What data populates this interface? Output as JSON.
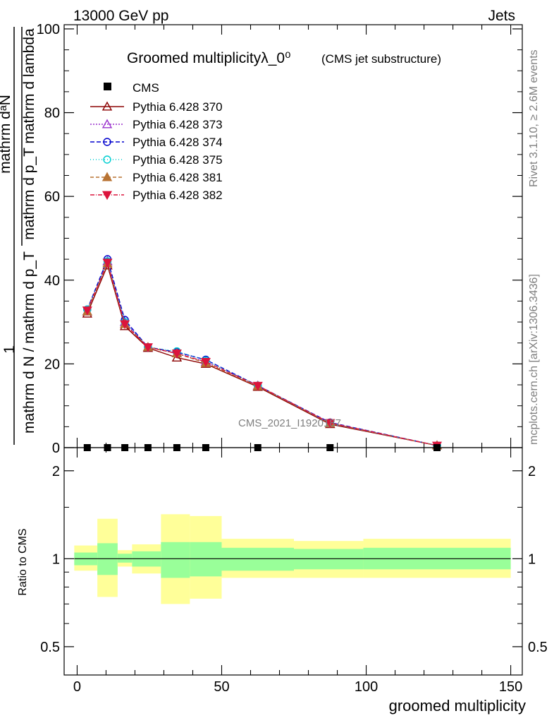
{
  "header": {
    "left": "13000 GeV pp",
    "right": "Jets"
  },
  "chart_data": {
    "type": "line",
    "title": "Groomed multiplicityλ_0⁰",
    "subtitle": "(CMS jet substructure)",
    "ylabel_numerator": "mathrm dᵃN",
    "ylabel_numerator_extra": "mathrm d p_T mathrm d lambda",
    "ylabel_prefix": "1",
    "ylabel_denominator": "mathrm d N / mathrm d p_T",
    "xlabel": "groomed multiplicity",
    "ratio_ylabel": "Ratio to CMS",
    "watermark": "CMS_2021_I1920187",
    "side_text_top": "Rivet 3.1.10, ≥ 2.6M events",
    "side_text_bottom": "mcplots.cern.ch [arXiv:1306.3436]",
    "xlim": [
      -4.5,
      154
    ],
    "ylim": [
      0,
      101
    ],
    "ratio_ylim": [
      0.4,
      2.4
    ],
    "xticks": [
      0,
      50,
      100,
      150
    ],
    "yticks": [
      0,
      20,
      40,
      60,
      80,
      100
    ],
    "ratio_yticks": [
      0.5,
      1,
      2
    ],
    "x": [
      3.5,
      10.5,
      16.5,
      24.5,
      34.5,
      44.5,
      62.5,
      87.5,
      124.5
    ],
    "cms_values": [
      0,
      0,
      0,
      0,
      0,
      0,
      0,
      0,
      0
    ],
    "series": [
      {
        "name": "Pythia 6.428 370",
        "color": "#8b0000",
        "marker": "triangle-open",
        "dash": "",
        "values": [
          32.0,
          43.5,
          29.0,
          23.8,
          21.5,
          20.0,
          14.5,
          5.6,
          0.5
        ]
      },
      {
        "name": "Pythia 6.428 373",
        "color": "#9a32cd",
        "marker": "triangle-open",
        "dash": "2,2",
        "values": [
          32.5,
          44.5,
          30.0,
          24.0,
          22.5,
          20.5,
          14.8,
          5.8,
          0.5
        ]
      },
      {
        "name": "Pythia 6.428 374",
        "color": "#0000cd",
        "marker": "circle-open",
        "dash": "6,3",
        "values": [
          33.0,
          45.0,
          30.5,
          24.0,
          22.8,
          21.0,
          14.8,
          6.0,
          0.5
        ]
      },
      {
        "name": "Pythia 6.428 375",
        "color": "#00ced1",
        "marker": "circle-open",
        "dash": "1,3",
        "values": [
          33.0,
          44.5,
          30.0,
          24.0,
          23.0,
          20.8,
          14.8,
          5.8,
          0.5
        ]
      },
      {
        "name": "Pythia 6.428 381",
        "color": "#b87333",
        "marker": "triangle-filled",
        "dash": "5,3",
        "values": [
          32.5,
          44.0,
          29.5,
          24.0,
          22.5,
          20.2,
          14.7,
          5.8,
          0.5
        ]
      },
      {
        "name": "Pythia 6.428 382",
        "color": "#dc143c",
        "marker": "triangle-down-filled",
        "dash": "6,2,1,2",
        "values": [
          32.8,
          44.2,
          29.5,
          24.0,
          22.5,
          20.5,
          14.8,
          5.9,
          0.5
        ]
      }
    ],
    "legend_data_label": "CMS",
    "ratio_bins": [
      {
        "x0": -1,
        "x1": 7,
        "inner": [
          0.95,
          1.05
        ],
        "outer": [
          0.91,
          1.11
        ]
      },
      {
        "x0": 7,
        "x1": 14,
        "inner": [
          0.88,
          1.13
        ],
        "outer": [
          0.74,
          1.37
        ]
      },
      {
        "x0": 14,
        "x1": 19,
        "inner": [
          0.97,
          1.04
        ],
        "outer": [
          0.94,
          1.07
        ]
      },
      {
        "x0": 19,
        "x1": 29,
        "inner": [
          0.94,
          1.06
        ],
        "outer": [
          0.89,
          1.12
        ]
      },
      {
        "x0": 29,
        "x1": 39,
        "inner": [
          0.86,
          1.14
        ],
        "outer": [
          0.7,
          1.42
        ]
      },
      {
        "x0": 39,
        "x1": 50,
        "inner": [
          0.87,
          1.14
        ],
        "outer": [
          0.73,
          1.4
        ]
      },
      {
        "x0": 50,
        "x1": 75,
        "inner": [
          0.91,
          1.09
        ],
        "outer": [
          0.86,
          1.17
        ]
      },
      {
        "x0": 75,
        "x1": 99,
        "inner": [
          0.92,
          1.08
        ],
        "outer": [
          0.86,
          1.15
        ]
      },
      {
        "x0": 99,
        "x1": 150,
        "inner": [
          0.92,
          1.09
        ],
        "outer": [
          0.86,
          1.17
        ]
      }
    ],
    "ratio_reference": 1
  }
}
